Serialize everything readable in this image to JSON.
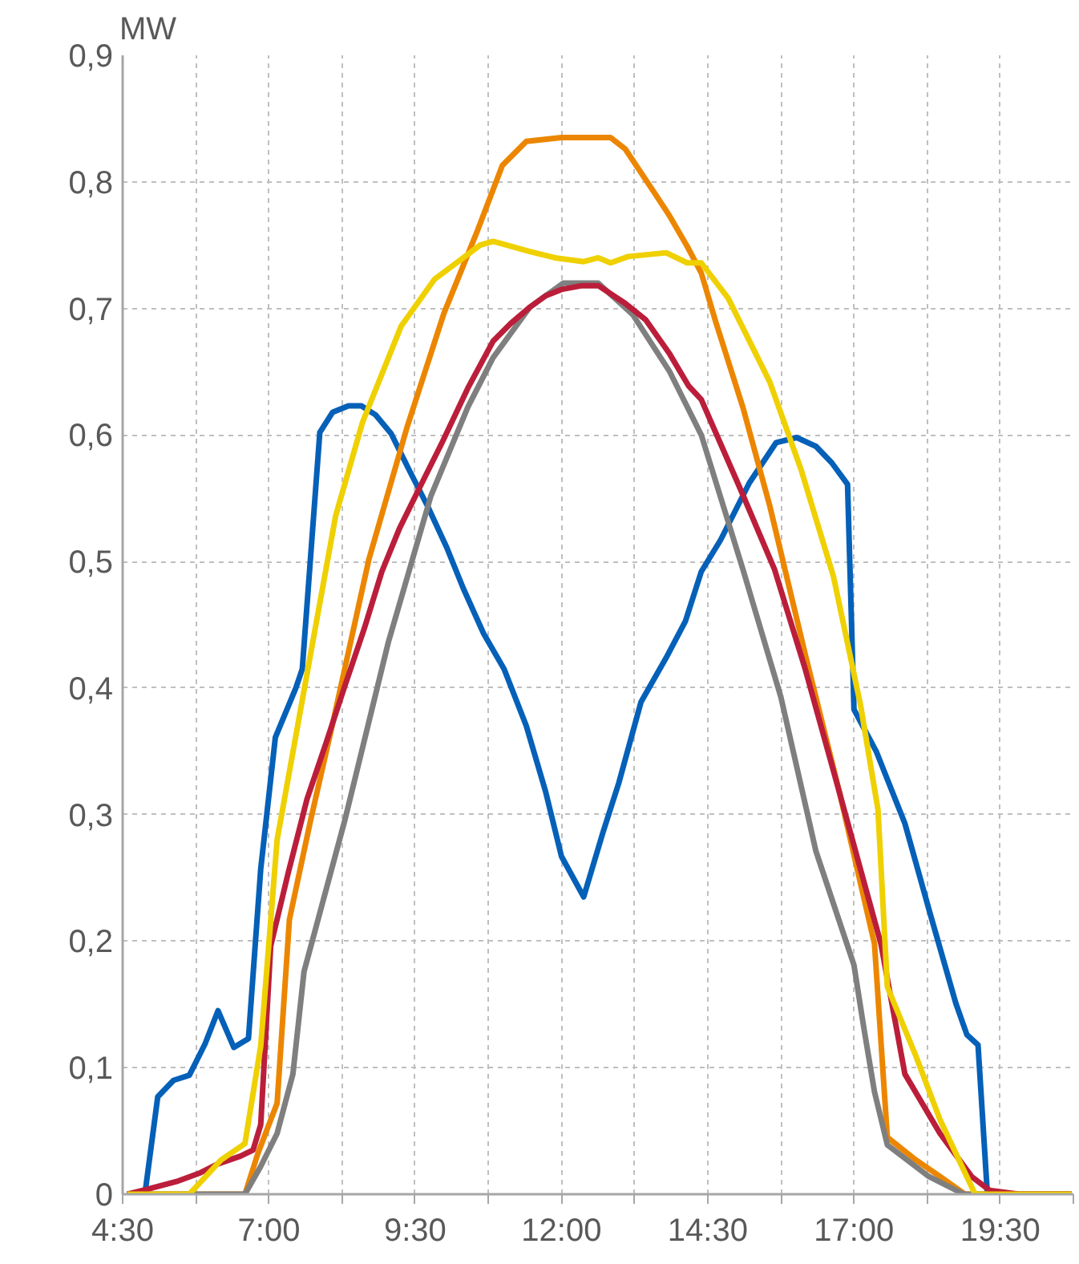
{
  "chart_data": {
    "type": "line",
    "ylabel": "MW",
    "xlim": [
      4.5,
      20.75
    ],
    "ylim": [
      0,
      0.9
    ],
    "xticks": [
      {
        "value": 4.5,
        "label": "4:30"
      },
      {
        "value": 5.75,
        "label": null
      },
      {
        "value": 7,
        "label": "7:00"
      },
      {
        "value": 8.25,
        "label": null
      },
      {
        "value": 9.5,
        "label": "9:30"
      },
      {
        "value": 10.75,
        "label": null
      },
      {
        "value": 12,
        "label": "12:00"
      },
      {
        "value": 13.25,
        "label": null
      },
      {
        "value": 14.5,
        "label": "14:30"
      },
      {
        "value": 15.75,
        "label": null
      },
      {
        "value": 17,
        "label": "17:00"
      },
      {
        "value": 18.25,
        "label": null
      },
      {
        "value": 19.5,
        "label": "19:30"
      },
      {
        "value": 20.75,
        "label": null
      }
    ],
    "yticks": [
      0,
      {
        "value": 0.1,
        "label": "0,1"
      },
      {
        "value": 0.2,
        "label": "0,2"
      },
      {
        "value": 0.3,
        "label": "0,3"
      },
      {
        "value": 0.4,
        "label": "0,4"
      },
      {
        "value": 0.5,
        "label": "0,5"
      },
      {
        "value": 0.6,
        "label": "0,6"
      },
      {
        "value": 0.7,
        "label": "0,7"
      },
      {
        "value": 0.8,
        "label": "0,8"
      },
      {
        "value": 0.9,
        "label": "0,9"
      }
    ],
    "grid": true,
    "line_style": "solid",
    "series": [
      {
        "color": "#0560b8",
        "x": [
          4.58,
          4.88,
          5.1,
          5.37,
          5.64,
          5.91,
          6.13,
          6.4,
          6.65,
          6.86,
          7.11,
          7.46,
          7.57,
          7.87,
          8.09,
          8.36,
          8.58,
          8.82,
          9.09,
          9.39,
          9.72,
          10.04,
          10.32,
          10.67,
          11.02,
          11.4,
          11.73,
          12.0,
          12.38,
          12.71,
          12.98,
          13.36,
          13.79,
          14.12,
          14.39,
          14.72,
          15.21,
          15.67,
          16.02,
          16.35,
          16.62,
          16.89,
          17.0,
          17.38,
          17.87,
          18.3,
          18.74,
          18.93,
          19.12,
          19.28,
          20.72
        ],
        "values": [
          0,
          0,
          0.077,
          0.09,
          0.094,
          0.119,
          0.145,
          0.116,
          0.123,
          0.257,
          0.361,
          0.4,
          0.415,
          0.602,
          0.618,
          0.623,
          0.623,
          0.616,
          0.601,
          0.573,
          0.543,
          0.511,
          0.479,
          0.443,
          0.415,
          0.37,
          0.318,
          0.267,
          0.235,
          0.286,
          0.325,
          0.389,
          0.424,
          0.453,
          0.492,
          0.517,
          0.562,
          0.594,
          0.598,
          0.591,
          0.578,
          0.561,
          0.383,
          0.35,
          0.293,
          0.222,
          0.151,
          0.126,
          0.118,
          0,
          0
        ]
      },
      {
        "color": "#ec8600",
        "x": [
          4.58,
          6.59,
          6.81,
          7.14,
          7.35,
          7.71,
          8.09,
          8.71,
          9.36,
          9.99,
          10.56,
          10.99,
          11.4,
          12.0,
          12.49,
          12.84,
          13.09,
          13.58,
          13.85,
          14.15,
          14.39,
          14.64,
          15.1,
          15.56,
          16.16,
          16.76,
          17.35,
          17.57,
          18.06,
          18.47,
          18.9,
          20.72
        ],
        "values": [
          0,
          0,
          0.032,
          0.072,
          0.217,
          0.295,
          0.372,
          0.502,
          0.606,
          0.696,
          0.761,
          0.813,
          0.832,
          0.835,
          0.835,
          0.835,
          0.826,
          0.792,
          0.773,
          0.749,
          0.728,
          0.689,
          0.622,
          0.544,
          0.428,
          0.316,
          0.198,
          0.045,
          0.027,
          0.014,
          0,
          0
        ]
      },
      {
        "color": "#7f7f7f",
        "x": [
          4.58,
          6.59,
          6.86,
          7.14,
          7.41,
          7.6,
          8.3,
          9.04,
          9.77,
          10.4,
          10.83,
          11.46,
          12.03,
          12.63,
          13.22,
          13.85,
          14.39,
          15.1,
          15.75,
          16.35,
          17.0,
          17.17,
          17.35,
          17.57,
          18.28,
          18.88,
          20.72
        ],
        "values": [
          0,
          0,
          0.022,
          0.048,
          0.095,
          0.176,
          0.296,
          0.436,
          0.552,
          0.622,
          0.661,
          0.701,
          0.72,
          0.72,
          0.695,
          0.65,
          0.6,
          0.494,
          0.393,
          0.271,
          0.181,
          0.131,
          0.081,
          0.039,
          0.014,
          0,
          0
        ]
      },
      {
        "color": "#bb1e3a",
        "x": [
          4.58,
          4.93,
          5.42,
          5.83,
          6.13,
          6.51,
          6.73,
          6.86,
          7.03,
          7.33,
          7.65,
          7.98,
          8.3,
          8.63,
          8.93,
          9.23,
          9.55,
          9.96,
          10.4,
          10.83,
          11.13,
          11.46,
          11.73,
          12.0,
          12.35,
          12.63,
          13.09,
          13.44,
          13.85,
          14.17,
          14.39,
          15.07,
          15.64,
          16.16,
          16.76,
          17.46,
          17.87,
          18.47,
          19.01,
          19.32,
          19.83,
          20.72
        ],
        "values": [
          0,
          0.004,
          0.01,
          0.017,
          0.024,
          0.03,
          0.035,
          0.055,
          0.196,
          0.254,
          0.312,
          0.357,
          0.402,
          0.447,
          0.492,
          0.526,
          0.556,
          0.594,
          0.637,
          0.674,
          0.688,
          0.701,
          0.71,
          0.715,
          0.718,
          0.718,
          0.704,
          0.691,
          0.664,
          0.639,
          0.628,
          0.556,
          0.494,
          0.416,
          0.316,
          0.198,
          0.095,
          0.048,
          0.014,
          0.003,
          0,
          0
        ]
      },
      {
        "color": "#efd000",
        "x": [
          4.58,
          5.64,
          6.18,
          6.59,
          6.86,
          7.14,
          7.65,
          8.14,
          8.6,
          9.26,
          9.83,
          10.61,
          10.83,
          11.46,
          11.89,
          12.38,
          12.63,
          12.84,
          13.14,
          13.79,
          14.15,
          14.39,
          14.85,
          15.56,
          16.1,
          16.65,
          17.11,
          17.41,
          17.57,
          18.06,
          18.47,
          19.07,
          20.72
        ],
        "values": [
          0,
          0,
          0.027,
          0.04,
          0.117,
          0.28,
          0.411,
          0.536,
          0.61,
          0.686,
          0.723,
          0.75,
          0.753,
          0.745,
          0.74,
          0.737,
          0.74,
          0.736,
          0.741,
          0.744,
          0.736,
          0.736,
          0.708,
          0.642,
          0.572,
          0.488,
          0.387,
          0.304,
          0.164,
          0.109,
          0.059,
          0,
          0
        ]
      }
    ]
  }
}
